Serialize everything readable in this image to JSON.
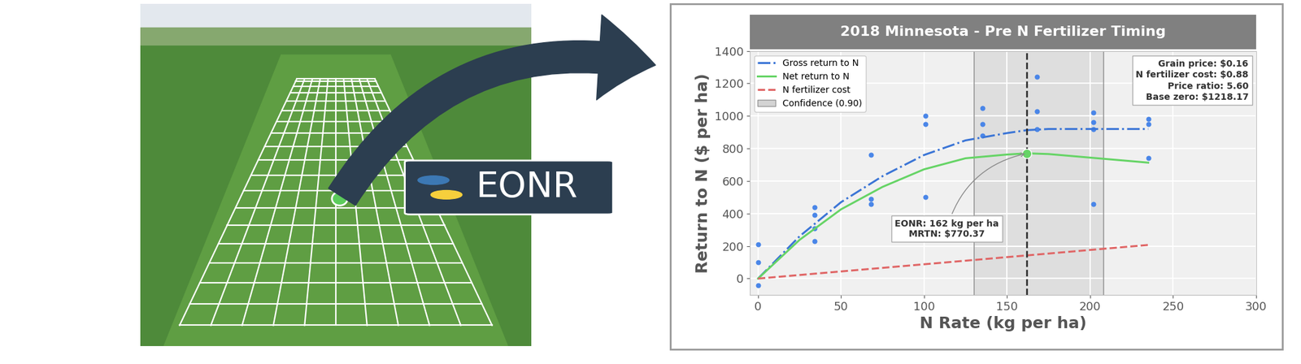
{
  "chart_data": {
    "type": "line",
    "title": "2018 Minnesota - Pre N Fertilizer Timing",
    "x_label": "N Rate (kg per ha)",
    "y_label": "Return to N ($ per ha)",
    "xlim": [
      -5,
      300
    ],
    "xticks": [
      0,
      50,
      100,
      150,
      200,
      250,
      300
    ],
    "ylim": [
      -100,
      1400
    ],
    "yticks": [
      0,
      200,
      400,
      600,
      800,
      1000,
      1200,
      1400
    ],
    "grid": true,
    "legend": "upper left",
    "x": [
      0,
      25,
      50,
      75,
      100,
      125,
      150,
      162,
      175,
      200,
      225,
      235
    ],
    "series": [
      {
        "name": "Gross return to N",
        "color": "#3b75d6",
        "line_style": "dashdot",
        "values": [
          0,
          260,
          470,
          630,
          760,
          850,
          895,
          913,
          920,
          920,
          920,
          920
        ]
      },
      {
        "name": "Net return to N",
        "color": "#66d466",
        "line_style": "solid",
        "values": [
          0,
          238,
          426,
          564,
          672,
          740,
          763,
          770.37,
          766,
          744,
          722,
          713
        ]
      },
      {
        "name": "N fertilizer cost",
        "color": "#e06666",
        "line_style": "dashed",
        "values": [
          0,
          22,
          44,
          66,
          88,
          110,
          132,
          142.6,
          154,
          176,
          198,
          206.8
        ]
      }
    ],
    "points": {
      "color": "#4a86e8",
      "marker": "o",
      "x": [
        0,
        0,
        0,
        34,
        34,
        34,
        34,
        68,
        68,
        68,
        101,
        101,
        101,
        135,
        135,
        135,
        168,
        168,
        168,
        202,
        202,
        202,
        202,
        235,
        235,
        235
      ],
      "values": [
        -40,
        100,
        210,
        230,
        310,
        390,
        440,
        460,
        490,
        760,
        500,
        950,
        1000,
        880,
        950,
        1050,
        920,
        1030,
        1240,
        460,
        920,
        960,
        1020,
        740,
        950,
        980
      ]
    },
    "confidence": {
      "name": "Confidence (0.90)",
      "range": [
        130,
        208
      ],
      "color": "#d3d3d3"
    },
    "eonr": {
      "x": 162,
      "y": 770.37,
      "color": "#66d466",
      "label": "EONR: 162 kg per ha\nMRTN: $770.37"
    },
    "info_box": [
      "Grain price: $0.16",
      "N fertilizer cost: $0.88",
      "Price ratio: 5.60",
      "Base zero: $1218.17"
    ]
  },
  "diagram": {
    "label": "EONR"
  }
}
